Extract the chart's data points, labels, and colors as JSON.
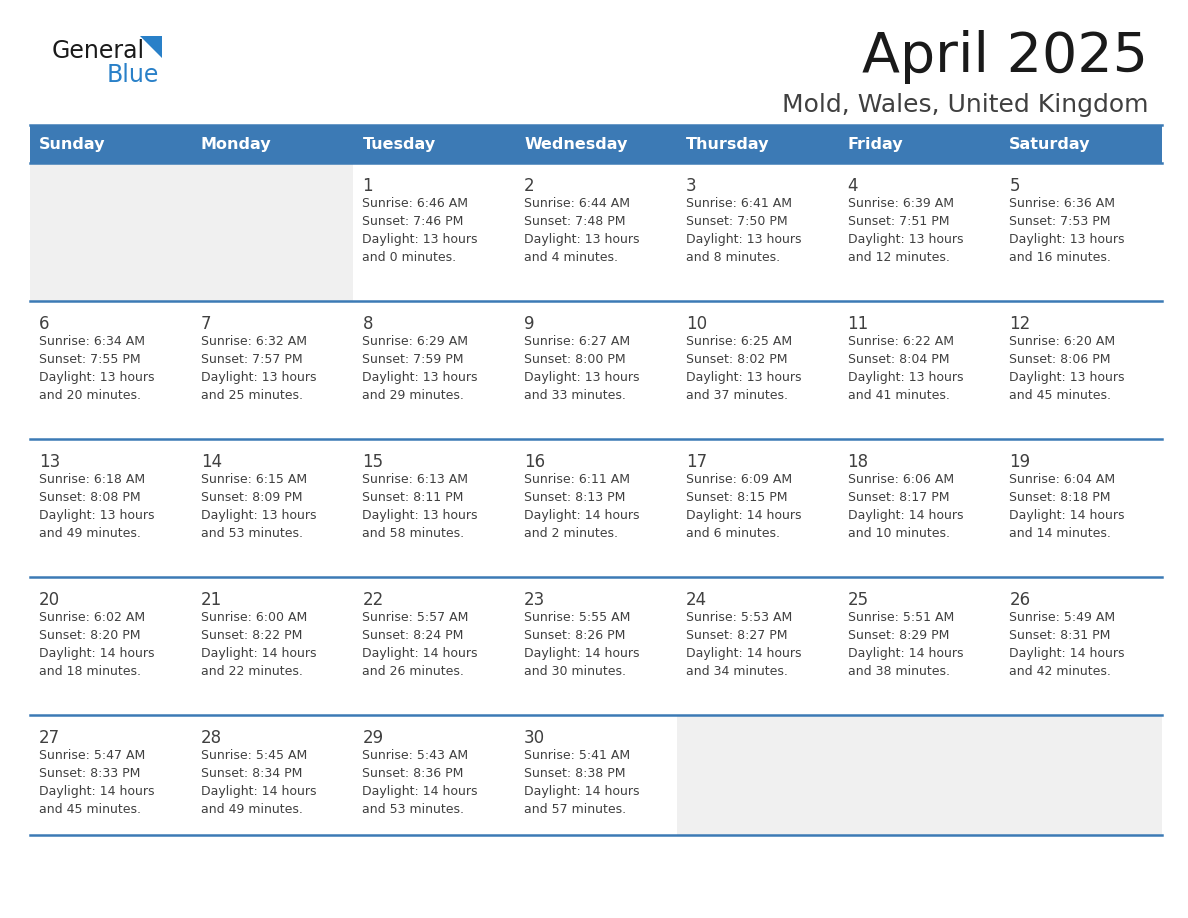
{
  "title": "April 2025",
  "subtitle": "Mold, Wales, United Kingdom",
  "header_bg": "#3c7ab5",
  "header_text_color": "#ffffff",
  "cell_bg": "#ffffff",
  "cell_bg_empty": "#f0f0f0",
  "text_color": "#404040",
  "border_color": "#3c7ab5",
  "days_of_week": [
    "Sunday",
    "Monday",
    "Tuesday",
    "Wednesday",
    "Thursday",
    "Friday",
    "Saturday"
  ],
  "weeks": [
    [
      {
        "day": "",
        "sunrise": "",
        "sunset": "",
        "daylight": ""
      },
      {
        "day": "",
        "sunrise": "",
        "sunset": "",
        "daylight": ""
      },
      {
        "day": "1",
        "sunrise": "Sunrise: 6:46 AM",
        "sunset": "Sunset: 7:46 PM",
        "daylight": "Daylight: 13 hours\nand 0 minutes."
      },
      {
        "day": "2",
        "sunrise": "Sunrise: 6:44 AM",
        "sunset": "Sunset: 7:48 PM",
        "daylight": "Daylight: 13 hours\nand 4 minutes."
      },
      {
        "day": "3",
        "sunrise": "Sunrise: 6:41 AM",
        "sunset": "Sunset: 7:50 PM",
        "daylight": "Daylight: 13 hours\nand 8 minutes."
      },
      {
        "day": "4",
        "sunrise": "Sunrise: 6:39 AM",
        "sunset": "Sunset: 7:51 PM",
        "daylight": "Daylight: 13 hours\nand 12 minutes."
      },
      {
        "day": "5",
        "sunrise": "Sunrise: 6:36 AM",
        "sunset": "Sunset: 7:53 PM",
        "daylight": "Daylight: 13 hours\nand 16 minutes."
      }
    ],
    [
      {
        "day": "6",
        "sunrise": "Sunrise: 6:34 AM",
        "sunset": "Sunset: 7:55 PM",
        "daylight": "Daylight: 13 hours\nand 20 minutes."
      },
      {
        "day": "7",
        "sunrise": "Sunrise: 6:32 AM",
        "sunset": "Sunset: 7:57 PM",
        "daylight": "Daylight: 13 hours\nand 25 minutes."
      },
      {
        "day": "8",
        "sunrise": "Sunrise: 6:29 AM",
        "sunset": "Sunset: 7:59 PM",
        "daylight": "Daylight: 13 hours\nand 29 minutes."
      },
      {
        "day": "9",
        "sunrise": "Sunrise: 6:27 AM",
        "sunset": "Sunset: 8:00 PM",
        "daylight": "Daylight: 13 hours\nand 33 minutes."
      },
      {
        "day": "10",
        "sunrise": "Sunrise: 6:25 AM",
        "sunset": "Sunset: 8:02 PM",
        "daylight": "Daylight: 13 hours\nand 37 minutes."
      },
      {
        "day": "11",
        "sunrise": "Sunrise: 6:22 AM",
        "sunset": "Sunset: 8:04 PM",
        "daylight": "Daylight: 13 hours\nand 41 minutes."
      },
      {
        "day": "12",
        "sunrise": "Sunrise: 6:20 AM",
        "sunset": "Sunset: 8:06 PM",
        "daylight": "Daylight: 13 hours\nand 45 minutes."
      }
    ],
    [
      {
        "day": "13",
        "sunrise": "Sunrise: 6:18 AM",
        "sunset": "Sunset: 8:08 PM",
        "daylight": "Daylight: 13 hours\nand 49 minutes."
      },
      {
        "day": "14",
        "sunrise": "Sunrise: 6:15 AM",
        "sunset": "Sunset: 8:09 PM",
        "daylight": "Daylight: 13 hours\nand 53 minutes."
      },
      {
        "day": "15",
        "sunrise": "Sunrise: 6:13 AM",
        "sunset": "Sunset: 8:11 PM",
        "daylight": "Daylight: 13 hours\nand 58 minutes."
      },
      {
        "day": "16",
        "sunrise": "Sunrise: 6:11 AM",
        "sunset": "Sunset: 8:13 PM",
        "daylight": "Daylight: 14 hours\nand 2 minutes."
      },
      {
        "day": "17",
        "sunrise": "Sunrise: 6:09 AM",
        "sunset": "Sunset: 8:15 PM",
        "daylight": "Daylight: 14 hours\nand 6 minutes."
      },
      {
        "day": "18",
        "sunrise": "Sunrise: 6:06 AM",
        "sunset": "Sunset: 8:17 PM",
        "daylight": "Daylight: 14 hours\nand 10 minutes."
      },
      {
        "day": "19",
        "sunrise": "Sunrise: 6:04 AM",
        "sunset": "Sunset: 8:18 PM",
        "daylight": "Daylight: 14 hours\nand 14 minutes."
      }
    ],
    [
      {
        "day": "20",
        "sunrise": "Sunrise: 6:02 AM",
        "sunset": "Sunset: 8:20 PM",
        "daylight": "Daylight: 14 hours\nand 18 minutes."
      },
      {
        "day": "21",
        "sunrise": "Sunrise: 6:00 AM",
        "sunset": "Sunset: 8:22 PM",
        "daylight": "Daylight: 14 hours\nand 22 minutes."
      },
      {
        "day": "22",
        "sunrise": "Sunrise: 5:57 AM",
        "sunset": "Sunset: 8:24 PM",
        "daylight": "Daylight: 14 hours\nand 26 minutes."
      },
      {
        "day": "23",
        "sunrise": "Sunrise: 5:55 AM",
        "sunset": "Sunset: 8:26 PM",
        "daylight": "Daylight: 14 hours\nand 30 minutes."
      },
      {
        "day": "24",
        "sunrise": "Sunrise: 5:53 AM",
        "sunset": "Sunset: 8:27 PM",
        "daylight": "Daylight: 14 hours\nand 34 minutes."
      },
      {
        "day": "25",
        "sunrise": "Sunrise: 5:51 AM",
        "sunset": "Sunset: 8:29 PM",
        "daylight": "Daylight: 14 hours\nand 38 minutes."
      },
      {
        "day": "26",
        "sunrise": "Sunrise: 5:49 AM",
        "sunset": "Sunset: 8:31 PM",
        "daylight": "Daylight: 14 hours\nand 42 minutes."
      }
    ],
    [
      {
        "day": "27",
        "sunrise": "Sunrise: 5:47 AM",
        "sunset": "Sunset: 8:33 PM",
        "daylight": "Daylight: 14 hours\nand 45 minutes."
      },
      {
        "day": "28",
        "sunrise": "Sunrise: 5:45 AM",
        "sunset": "Sunset: 8:34 PM",
        "daylight": "Daylight: 14 hours\nand 49 minutes."
      },
      {
        "day": "29",
        "sunrise": "Sunrise: 5:43 AM",
        "sunset": "Sunset: 8:36 PM",
        "daylight": "Daylight: 14 hours\nand 53 minutes."
      },
      {
        "day": "30",
        "sunrise": "Sunrise: 5:41 AM",
        "sunset": "Sunset: 8:38 PM",
        "daylight": "Daylight: 14 hours\nand 57 minutes."
      },
      {
        "day": "",
        "sunrise": "",
        "sunset": "",
        "daylight": ""
      },
      {
        "day": "",
        "sunrise": "",
        "sunset": "",
        "daylight": ""
      },
      {
        "day": "",
        "sunrise": "",
        "sunset": "",
        "daylight": ""
      }
    ]
  ]
}
